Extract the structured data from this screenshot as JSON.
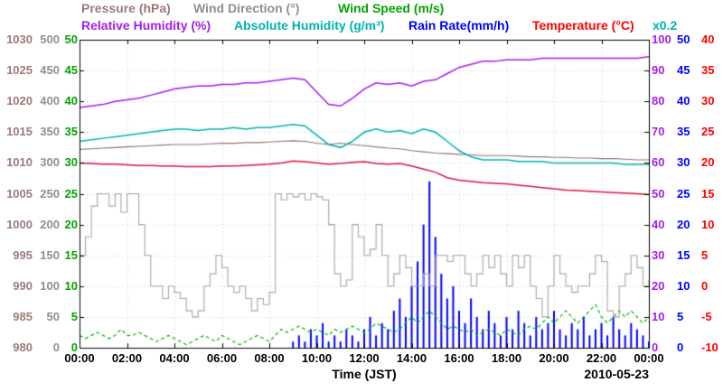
{
  "legend": {
    "row1": [
      {
        "label": "Pressure (hPa)",
        "color": "#9c7a7a"
      },
      {
        "label": "Wind Direction (°)",
        "color": "#8f8f8f"
      },
      {
        "label": "Wind Speed (m/s)",
        "color": "#00a400"
      }
    ],
    "row2": [
      {
        "label": "Relative Humidity (%)",
        "color": "#a21fea"
      },
      {
        "label": "Absolute Humidity (g/m³)",
        "color": "#00b2b2"
      },
      {
        "label": "Rain Rate(mm/h)",
        "color": "#0000ff"
      },
      {
        "label": "Temperature (°C)",
        "color": "#ff0000"
      }
    ],
    "scale_note": {
      "label": "x0.2",
      "color": "#00b2b2"
    }
  },
  "axes": {
    "left": [
      {
        "name": "pressure",
        "unit": "hPa",
        "color": "#9c7a7a",
        "ticks": [
          "1030",
          "1025",
          "1020",
          "1015",
          "1010",
          "1005",
          "1000",
          "995",
          "990",
          "985",
          "980"
        ]
      },
      {
        "name": "wind-direction",
        "unit": "°",
        "color": "#8f8f8f",
        "ticks": [
          "500",
          "450",
          "400",
          "350",
          "300",
          "250",
          "200",
          "150",
          "100",
          "50",
          "0"
        ]
      },
      {
        "name": "wind-speed",
        "unit": "m/s",
        "color": "#00a400",
        "ticks": [
          "50",
          "45",
          "40",
          "35",
          "30",
          "25",
          "20",
          "15",
          "10",
          "5",
          "0"
        ]
      }
    ],
    "right": [
      {
        "name": "relative-humidity",
        "unit": "%",
        "color": "#a21fea",
        "ticks": [
          "100",
          "90",
          "80",
          "70",
          "60",
          "50",
          "40",
          "30",
          "20",
          "10",
          "0"
        ]
      },
      {
        "name": "rain-rate",
        "unit": "mm/h",
        "color": "#0000ff",
        "ticks": [
          "50",
          "45",
          "40",
          "35",
          "30",
          "25",
          "20",
          "15",
          "10",
          "5",
          "0"
        ]
      },
      {
        "name": "temperature",
        "unit": "°C",
        "color": "#ff0000",
        "ticks": [
          "40",
          "35",
          "30",
          "25",
          "20",
          "15",
          "10",
          "5",
          "0",
          "-5",
          "-10"
        ]
      }
    ],
    "x": {
      "label": "Time (JST)",
      "date": "2010-05-23",
      "ticks": [
        "00:00",
        "02:00",
        "04:00",
        "06:00",
        "08:00",
        "10:00",
        "12:00",
        "14:00",
        "16:00",
        "18:00",
        "20:00",
        "22:00",
        "00:00"
      ]
    }
  },
  "chart_data": {
    "type": "line",
    "x_unit": "hours (JST)",
    "x_range": [
      0,
      24
    ],
    "x_tick_interval_hours": 2,
    "date": "2010-05-23",
    "grid": true,
    "legend_position": "top",
    "series": [
      {
        "name": "Rain Rate",
        "unit": "mm/h",
        "color": "#0000ff",
        "axis_range": [
          0,
          50
        ],
        "style": "bars",
        "interval_minutes": 15,
        "line_width": 1,
        "values": [
          0,
          0,
          0,
          0,
          0,
          0,
          0,
          0,
          0,
          0,
          0,
          0,
          0,
          0,
          0,
          0,
          0,
          0,
          0,
          0,
          0,
          0,
          0,
          0,
          0,
          0,
          0,
          0,
          0,
          0,
          0,
          0,
          0,
          0,
          0,
          0,
          1,
          2,
          1,
          3,
          2,
          4,
          1,
          2,
          1,
          3,
          2,
          1,
          3,
          5,
          2,
          4,
          3,
          6,
          8,
          5,
          10,
          14,
          20,
          27,
          18,
          12,
          8,
          10,
          6,
          4,
          8,
          5,
          3,
          6,
          4,
          2,
          5,
          3,
          6,
          4,
          2,
          5,
          3,
          4,
          6,
          3,
          2,
          4,
          3,
          5,
          2,
          3,
          4,
          2,
          5,
          3,
          2,
          4,
          3,
          2,
          1
        ]
      },
      {
        "name": "Wind Speed",
        "unit": "m/s",
        "color": "#00b400",
        "axis_range": [
          0,
          50
        ],
        "style": "dashed",
        "interval_minutes": 15,
        "line_width": 1.2,
        "values": [
          2,
          1.5,
          2,
          2.5,
          2,
          1.5,
          2,
          3,
          2,
          2,
          2.5,
          2,
          1.5,
          1,
          1.5,
          2,
          1.5,
          1,
          0.5,
          1,
          1.5,
          2,
          1.5,
          1,
          2,
          1.5,
          1,
          0.5,
          1,
          1.5,
          2,
          1.5,
          1,
          2,
          3,
          2.5,
          3,
          3.5,
          3,
          2.5,
          3,
          2.5,
          2,
          3,
          2.5,
          3,
          3.5,
          3,
          2.5,
          3,
          4,
          3.5,
          3,
          2.5,
          3,
          4,
          5,
          4,
          5,
          6,
          5,
          4,
          3,
          3.5,
          3,
          2.5,
          3,
          2,
          2.5,
          3,
          2.5,
          2,
          3,
          2.5,
          2,
          3,
          3.5,
          3,
          4,
          5,
          4,
          5,
          6,
          5,
          4,
          5,
          6,
          7,
          5,
          4,
          5,
          6,
          5,
          6,
          5,
          4,
          5
        ]
      },
      {
        "name": "Wind Direction",
        "unit": "°",
        "color": "#a6a6a6",
        "axis_range": [
          0,
          500
        ],
        "style": "steps",
        "interval_minutes": 15,
        "line_width": 1.1,
        "values": [
          150,
          180,
          230,
          250,
          250,
          230,
          250,
          220,
          250,
          250,
          200,
          150,
          100,
          100,
          80,
          100,
          90,
          80,
          60,
          50,
          60,
          100,
          120,
          150,
          130,
          100,
          90,
          100,
          80,
          60,
          80,
          70,
          90,
          250,
          240,
          250,
          245,
          250,
          240,
          250,
          245,
          240,
          200,
          120,
          100,
          110,
          200,
          180,
          150,
          160,
          200,
          150,
          100,
          120,
          150,
          130,
          100,
          100,
          120,
          100,
          150,
          150,
          140,
          150,
          150,
          120,
          100,
          120,
          150,
          130,
          150,
          120,
          100,
          150,
          130,
          150,
          100,
          80,
          50,
          100,
          150,
          120,
          100,
          90,
          100,
          100,
          120,
          150,
          140,
          60,
          50,
          100,
          120,
          150,
          130,
          100,
          110
        ]
      },
      {
        "name": "Pressure",
        "unit": "hPa",
        "color": "#93706c",
        "axis_range": [
          980,
          1030
        ],
        "style": "line",
        "interval_minutes": 30,
        "line_width": 1.1,
        "values": [
          1012.2,
          1012.3,
          1012.4,
          1012.5,
          1012.6,
          1012.7,
          1012.8,
          1012.9,
          1013.0,
          1013.0,
          1013.0,
          1013.1,
          1013.2,
          1013.2,
          1013.3,
          1013.3,
          1013.4,
          1013.5,
          1013.6,
          1013.5,
          1013.2,
          1013.0,
          1013.2,
          1013.0,
          1012.8,
          1012.6,
          1012.4,
          1012.3,
          1012.0,
          1011.8,
          1011.6,
          1011.5,
          1011.4,
          1011.3,
          1011.2,
          1011.2,
          1011.2,
          1011.1,
          1011.0,
          1011.0,
          1010.9,
          1010.9,
          1010.8,
          1010.8,
          1010.7,
          1010.7,
          1010.6,
          1010.5,
          1010.5
        ]
      },
      {
        "name": "Absolute Humidity",
        "unit": "g/m³",
        "color": "#00b2b2",
        "axis_range": [
          0,
          20
        ],
        "scale_note": "x0.2",
        "style": "line",
        "interval_minutes": 30,
        "line_width": 1.5,
        "values": [
          13.4,
          13.5,
          13.6,
          13.7,
          13.8,
          13.9,
          14.0,
          14.1,
          14.2,
          14.2,
          14.1,
          14.2,
          14.2,
          14.3,
          14.2,
          14.3,
          14.3,
          14.4,
          14.5,
          14.4,
          13.8,
          13.2,
          13.0,
          13.4,
          14.0,
          14.2,
          14.0,
          14.1,
          13.9,
          14.2,
          14.0,
          13.4,
          12.8,
          12.4,
          12.2,
          12.2,
          12.2,
          12.1,
          12.1,
          12.1,
          12.0,
          12.0,
          12.0,
          12.0,
          12.0,
          12.0,
          11.9,
          11.9,
          11.9
        ]
      },
      {
        "name": "Relative Humidity",
        "unit": "%",
        "color": "#a21fea",
        "axis_range": [
          0,
          100
        ],
        "style": "line",
        "interval_minutes": 30,
        "line_width": 1.5,
        "values": [
          78,
          78.5,
          79,
          80,
          80.5,
          81,
          82,
          83,
          84,
          84.5,
          85,
          85,
          85.5,
          85.5,
          86,
          86,
          86.5,
          87,
          87.5,
          87,
          83,
          79,
          78.5,
          81,
          84,
          86,
          85.5,
          86,
          85,
          86.5,
          87,
          89,
          91,
          92,
          93,
          93,
          93.5,
          93.5,
          93.5,
          94,
          94,
          94,
          94,
          94,
          94,
          94,
          94,
          94,
          94.5
        ]
      },
      {
        "name": "Temperature",
        "unit": "°C",
        "color": "#dc143c",
        "axis_range": [
          -10,
          40
        ],
        "style": "line",
        "interval_minutes": 30,
        "line_width": 1.5,
        "values": [
          20.0,
          19.9,
          19.8,
          19.8,
          19.7,
          19.6,
          19.6,
          19.5,
          19.5,
          19.4,
          19.4,
          19.4,
          19.5,
          19.5,
          19.6,
          19.7,
          19.8,
          20.0,
          20.3,
          20.2,
          20.0,
          19.8,
          19.9,
          20.1,
          20.2,
          19.9,
          19.8,
          19.9,
          19.5,
          19.0,
          18.5,
          17.6,
          17.2,
          17.0,
          16.8,
          16.7,
          16.6,
          16.4,
          16.2,
          16.0,
          15.8,
          15.6,
          15.5,
          15.4,
          15.3,
          15.2,
          15.1,
          15.0,
          14.9
        ]
      }
    ]
  }
}
